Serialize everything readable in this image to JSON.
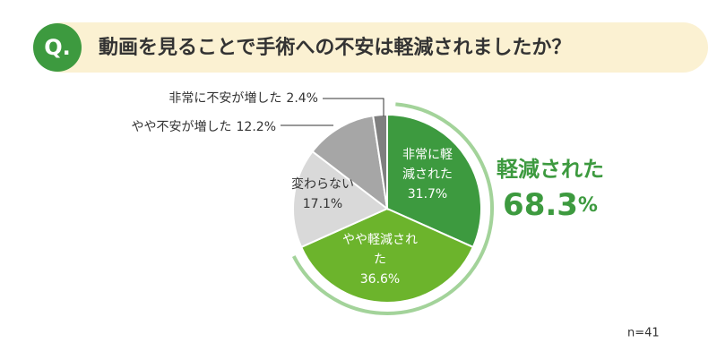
{
  "header": {
    "badge": "Q.",
    "question": "動画を見ることで手術への不安は軽減されましたか？"
  },
  "chart_data": {
    "type": "pie",
    "categories": [
      "非常に軽減された",
      "やや軽減された",
      "変わらない",
      "やや不安が増した",
      "非常に不安が増した"
    ],
    "values": [
      31.7,
      36.6,
      17.1,
      12.2,
      2.4
    ],
    "value_labels": [
      "31.7%",
      "36.6%",
      "17.1%",
      "12.2%",
      "2.4%"
    ],
    "colors": [
      "#3d9a3f",
      "#6cb42c",
      "#d9d9d9",
      "#a6a6a6",
      "#7f7f7f"
    ],
    "summary": {
      "text": "軽減された",
      "value": 68.3,
      "value_label": "68.3",
      "unit": "%",
      "color": "#3d9a3f",
      "arc_color": "#a3d39a"
    },
    "note": "n=41"
  }
}
